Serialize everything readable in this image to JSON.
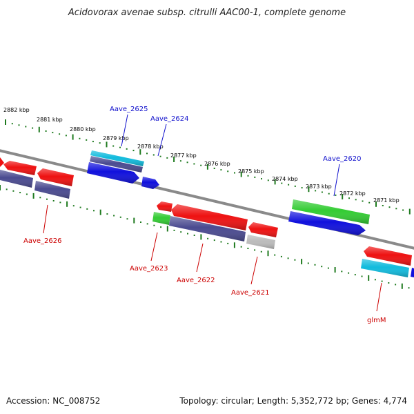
{
  "title": "Acidovorax avenae subsp. citrulli AAC00-1, complete genome",
  "accession": "Accession: NC_008752",
  "summary": "Topology: circular; Length: 5,352,772 bp; Genes: 4,774",
  "colors": {
    "backbone": "#8a8a8a",
    "ticks": "#1e7a1e",
    "upper_label": "#1010cc",
    "lower_label": "#cc0000",
    "gene_red": "#ee1111",
    "gene_blue": "#1010dd",
    "gene_navy": "#4a4a90",
    "gene_cyan": "#11bbdd",
    "gene_green": "#33cc33",
    "gene_grey": "#bbbbbb"
  },
  "kbp_labels": [
    "2882 kbp",
    "2881 kbp",
    "2880 kbp",
    "2879 kbp",
    "2878 kbp",
    "2877 kbp",
    "2876 kbp",
    "2875 kbp",
    "2874 kbp",
    "2873 kbp",
    "2872 kbp",
    "2871 kbp"
  ],
  "upper_labels": [
    "Aave_2625",
    "Aave_2624",
    "Aave_2620"
  ],
  "lower_labels": [
    "Aave_2626",
    "Aave_2623",
    "Aave_2622",
    "Aave_2621",
    "glmM"
  ]
}
